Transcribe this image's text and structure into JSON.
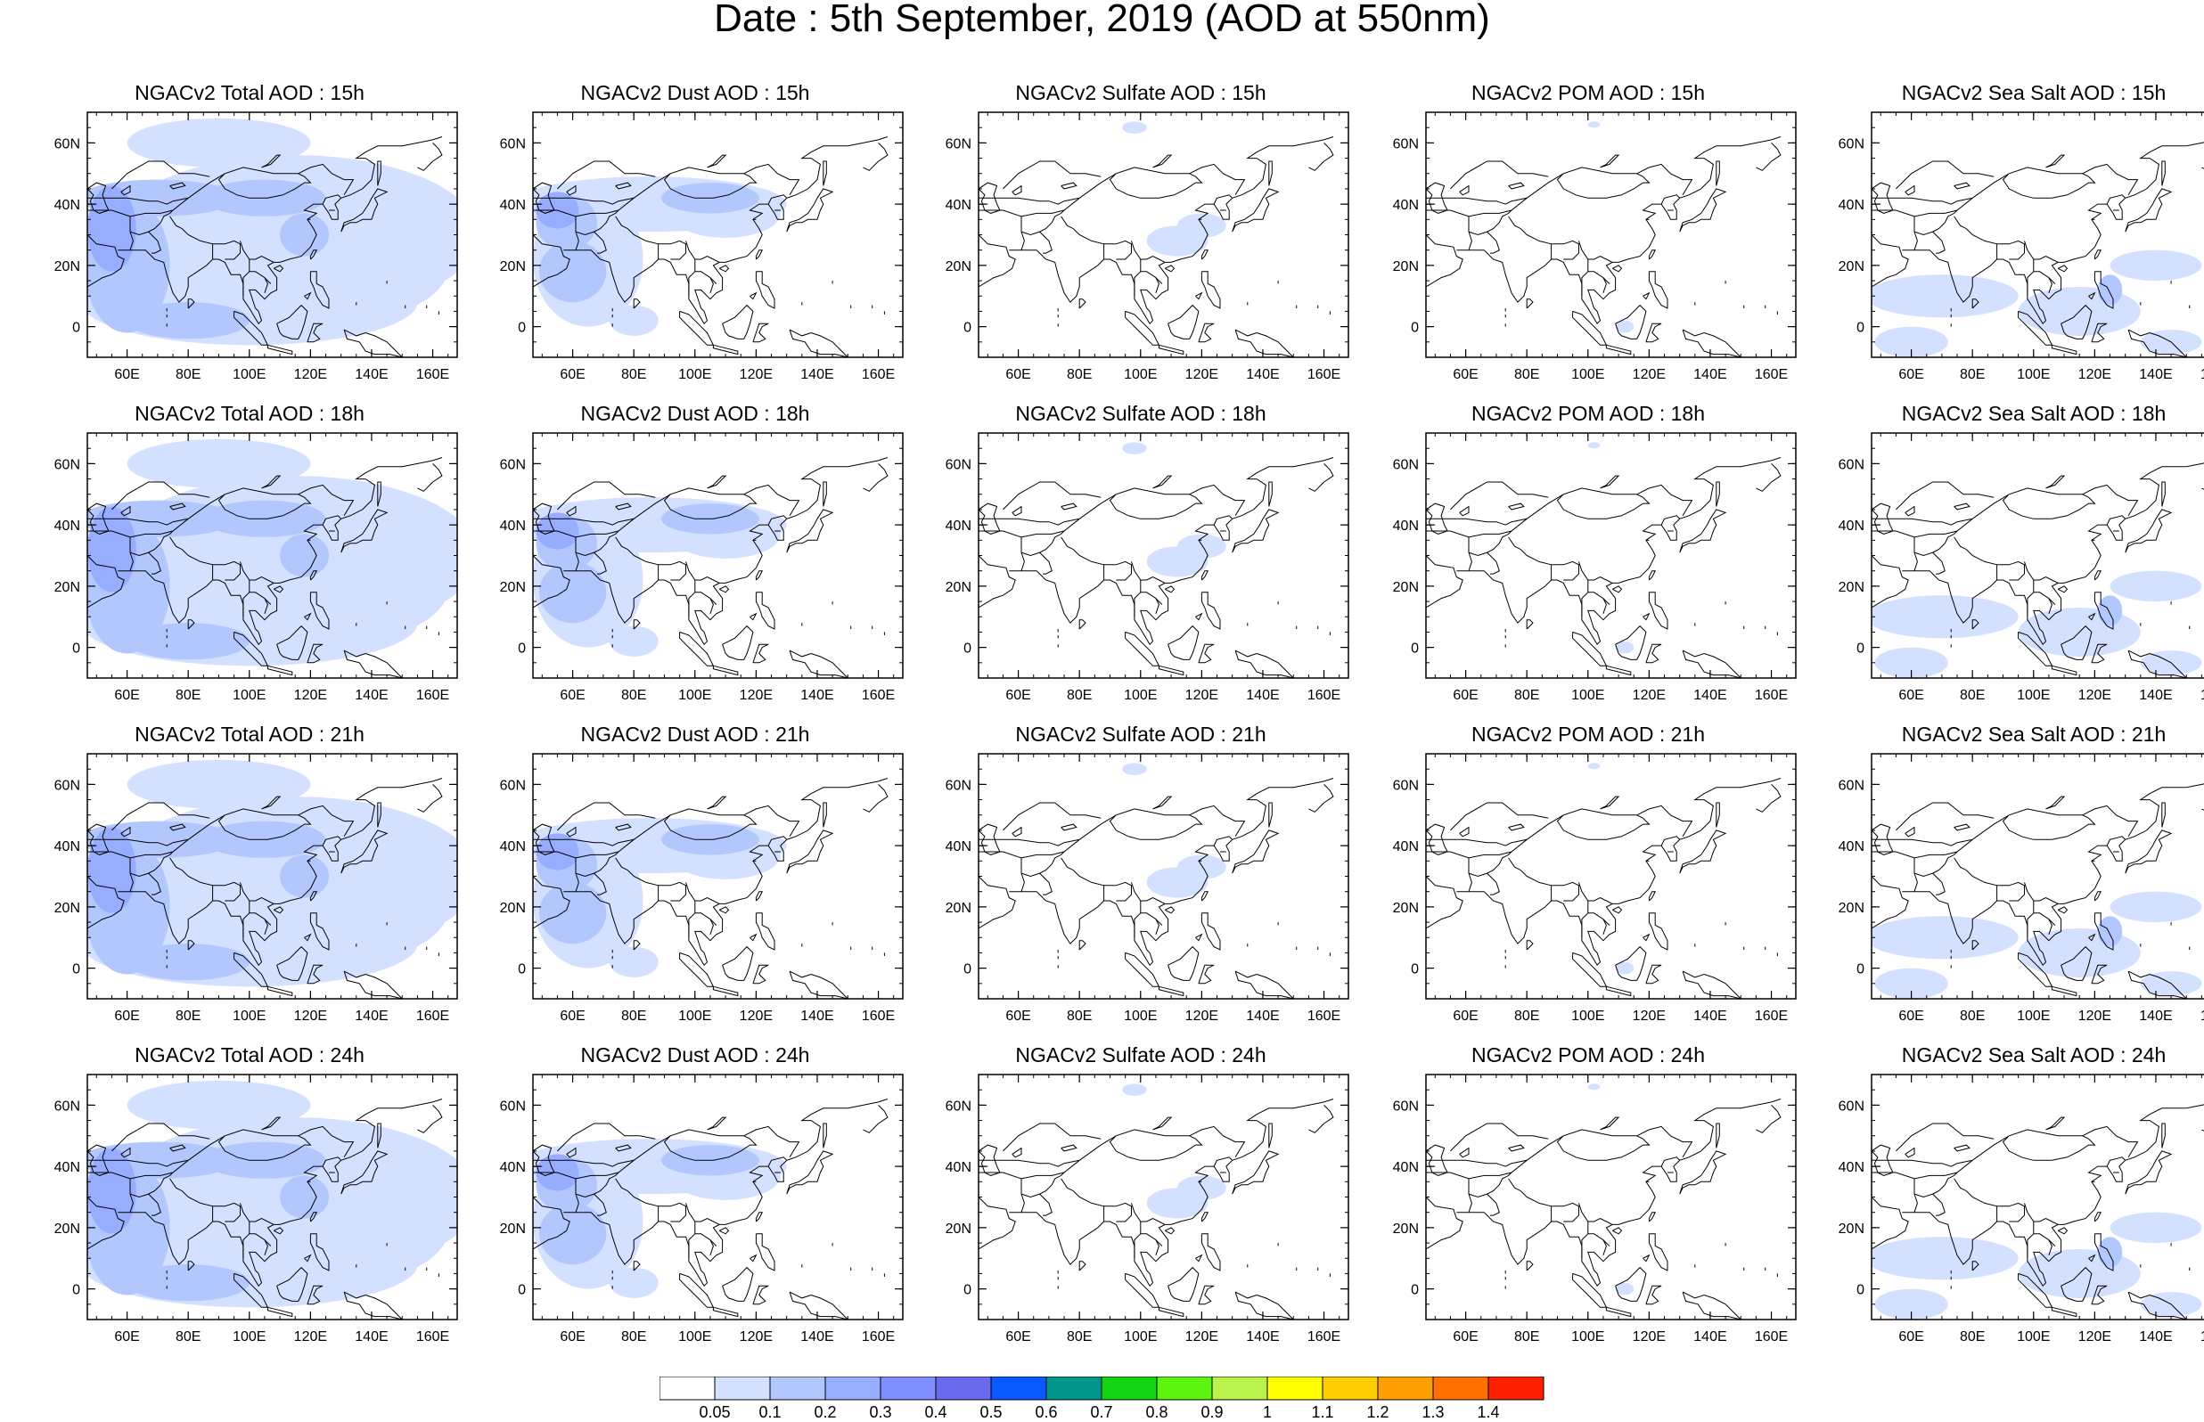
{
  "title": "Date : 5th September, 2019 (AOD at 550nm)",
  "lon_ticks": [
    "60E",
    "80E",
    "100E",
    "120E",
    "140E",
    "160E"
  ],
  "lat_ticks": [
    "60N",
    "40N",
    "20N",
    "0"
  ],
  "panels": [
    {
      "title": "NGACv2 Total AOD : 15h",
      "species": "total",
      "hour": 15
    },
    {
      "title": "NGACv2 Dust AOD : 15h",
      "species": "dust",
      "hour": 15
    },
    {
      "title": "NGACv2 Sulfate AOD : 15h",
      "species": "sulfate",
      "hour": 15
    },
    {
      "title": "NGACv2 POM AOD : 15h",
      "species": "pom",
      "hour": 15
    },
    {
      "title": "NGACv2 Sea Salt AOD : 15h",
      "species": "seasalt",
      "hour": 15
    },
    {
      "title": "NGACv2 Total AOD : 18h",
      "species": "total",
      "hour": 18
    },
    {
      "title": "NGACv2 Dust AOD : 18h",
      "species": "dust",
      "hour": 18
    },
    {
      "title": "NGACv2 Sulfate AOD : 18h",
      "species": "sulfate",
      "hour": 18
    },
    {
      "title": "NGACv2 POM AOD : 18h",
      "species": "pom",
      "hour": 18
    },
    {
      "title": "NGACv2 Sea Salt AOD : 18h",
      "species": "seasalt",
      "hour": 18
    },
    {
      "title": "NGACv2 Total AOD : 21h",
      "species": "total",
      "hour": 21
    },
    {
      "title": "NGACv2 Dust AOD : 21h",
      "species": "dust",
      "hour": 21
    },
    {
      "title": "NGACv2 Sulfate AOD : 21h",
      "species": "sulfate",
      "hour": 21
    },
    {
      "title": "NGACv2 POM AOD : 21h",
      "species": "pom",
      "hour": 21
    },
    {
      "title": "NGACv2 Sea Salt AOD : 21h",
      "species": "seasalt",
      "hour": 21
    },
    {
      "title": "NGACv2 Total AOD : 24h",
      "species": "total",
      "hour": 24
    },
    {
      "title": "NGACv2 Dust AOD : 24h",
      "species": "dust",
      "hour": 24
    },
    {
      "title": "NGACv2 Sulfate AOD : 24h",
      "species": "sulfate",
      "hour": 24
    },
    {
      "title": "NGACv2 POM AOD : 24h",
      "species": "pom",
      "hour": 24
    },
    {
      "title": "NGACv2 Sea Salt  AOD : 24h",
      "species": "seasalt",
      "hour": 24
    }
  ],
  "colorbar": {
    "labels": [
      "0.05",
      "0.1",
      "0.2",
      "0.3",
      "0.4",
      "0.5",
      "0.6",
      "0.7",
      "0.8",
      "0.9",
      "1",
      "1.1",
      "1.2",
      "1.3",
      "1.4"
    ],
    "colors": [
      "#ffffff",
      "#d4e0ff",
      "#b3c7ff",
      "#97adff",
      "#7f8fff",
      "#6a6aee",
      "#0a58ff",
      "#00968c",
      "#13d413",
      "#5cf510",
      "#b9f24a",
      "#ffff00",
      "#ffcc00",
      "#ffa000",
      "#ff7000",
      "#ff2000"
    ]
  },
  "land_color": "#ffffff",
  "coast_color": "#000000"
}
